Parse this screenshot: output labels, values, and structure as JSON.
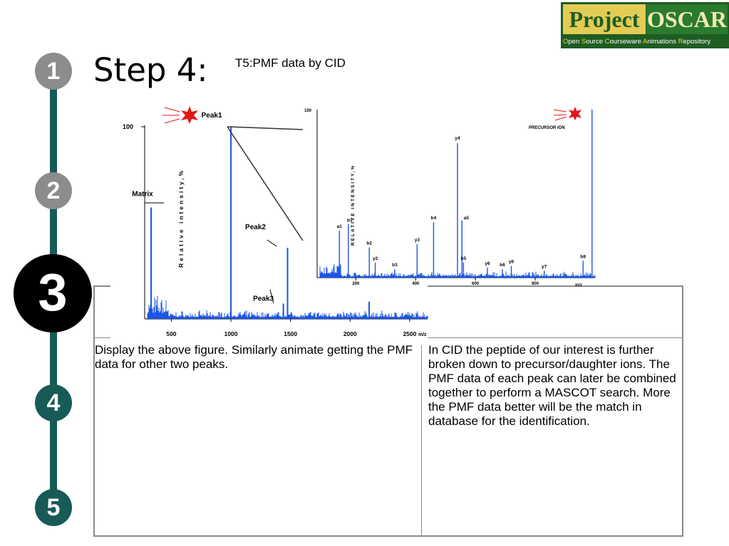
{
  "logo": {
    "word1": "Project",
    "word2": "OSCAR",
    "tagline_parts": [
      {
        "initial": "O",
        "rest": "pen "
      },
      {
        "initial": "S",
        "rest": "ource "
      },
      {
        "initial": "C",
        "rest": "ourseware "
      },
      {
        "initial": "A",
        "rest": "nimations "
      },
      {
        "initial": "R",
        "rest": "epository"
      }
    ]
  },
  "steps": [
    "1",
    "2",
    "3",
    "4",
    "5"
  ],
  "active_step": "3",
  "step_title": "Step 4:",
  "subtitle": "T5:PMF data by CID",
  "table": {
    "left_text": "Display the above figure. Similarly animate getting the PMF data for other two peaks.",
    "right_text": "In CID the peptide of our interest is further broken down to precursor/daughter ions. The PMF data of each peak can later be combined together to perform a MASCOT search. More the PMF data better will be the match in database for the identification."
  },
  "chart_data": [
    {
      "type": "line",
      "title": "",
      "xlabel": "m/z",
      "ylabel": "Relative intensity,%",
      "ytick": "100",
      "xticks": [
        "500",
        "1000",
        "1500",
        "2000",
        "2500"
      ],
      "xlim": [
        300,
        2650
      ],
      "ylim": [
        0,
        100
      ],
      "peaks": [
        {
          "label": "Matrix",
          "x": 330,
          "y": 58
        },
        {
          "label": "Peak1",
          "x": 1000,
          "y": 100
        },
        {
          "label": "Peak2",
          "x": 1475,
          "y": 37
        },
        {
          "label": "Peak3",
          "x": 1440,
          "y": 8
        },
        {
          "label": "",
          "x": 2160,
          "y": 9
        }
      ],
      "colors": {
        "spectrum": "#1a55e6",
        "star": "#e01818"
      }
    },
    {
      "type": "line",
      "title": "",
      "xlabel": "m/z",
      "ylabel": "RELATIVE INTENSITY,%",
      "ytick": "100",
      "xticks": [
        "200",
        "400",
        "600",
        "800"
      ],
      "xlim": [
        80,
        1000
      ],
      "ylim": [
        0,
        100
      ],
      "annotation": "PRECURSOR ION",
      "peaks": [
        {
          "label": "a1",
          "x": 145,
          "y": 28
        },
        {
          "label": "b1",
          "x": 175,
          "y": 32
        },
        {
          "label": "b2",
          "x": 245,
          "y": 18
        },
        {
          "label": "y2",
          "x": 265,
          "y": 9
        },
        {
          "label": "b3",
          "x": 330,
          "y": 5
        },
        {
          "label": "y3",
          "x": 405,
          "y": 20
        },
        {
          "label": "b4",
          "x": 460,
          "y": 33
        },
        {
          "label": "y4",
          "x": 540,
          "y": 80
        },
        {
          "label": "a5",
          "x": 555,
          "y": 34
        },
        {
          "label": "b5",
          "x": 560,
          "y": 9
        },
        {
          "label": "y6",
          "x": 640,
          "y": 6
        },
        {
          "label": "b6",
          "x": 690,
          "y": 5
        },
        {
          "label": "y6",
          "x": 720,
          "y": 7
        },
        {
          "label": "y7",
          "x": 830,
          "y": 4
        },
        {
          "label": "b8",
          "x": 960,
          "y": 10
        },
        {
          "label": "",
          "x": 990,
          "y": 100
        }
      ],
      "colors": {
        "spectrum": "#1a55e6",
        "star": "#e01818"
      }
    }
  ]
}
